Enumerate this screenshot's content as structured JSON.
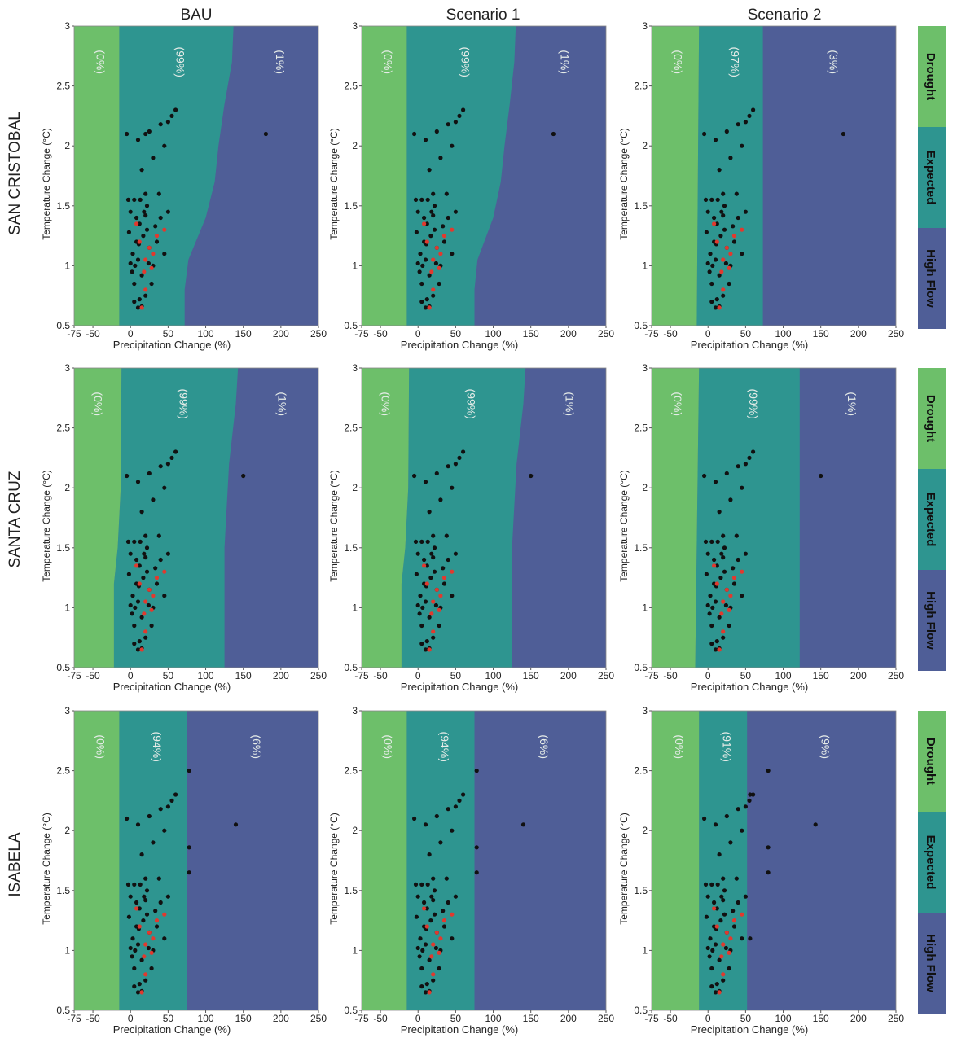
{
  "columns": [
    "BAU",
    "Scenario 1",
    "Scenario 2"
  ],
  "rows": [
    "SAN CRISTOBAL",
    "SANTA CRUZ",
    "ISABELA"
  ],
  "legend": [
    "Drought",
    "Expected",
    "High Flow"
  ],
  "colors": {
    "drought": "#6dbf6a",
    "expected": "#2e9590",
    "highflow": "#4f5e97",
    "point": "#111111",
    "point_red": "#e03a2f",
    "region_label": "#e6ece8"
  },
  "axes": {
    "xlabel": "Precipitation Change (%)",
    "ylabel": "Temperature Change (°C)",
    "xlim": [
      -75,
      250
    ],
    "ylim": [
      0.5,
      3
    ],
    "xticks": [
      -75,
      -50,
      0,
      50,
      100,
      150,
      200,
      250
    ],
    "yticks": [
      0.5,
      1,
      1.5,
      2,
      2.5,
      3
    ]
  },
  "chart_data": [
    {
      "row": "SAN CRISTOBAL",
      "column": "BAU",
      "type": "scatter",
      "region_labels": [
        "(0%)",
        "(99%)",
        "(1%)"
      ],
      "boundary_drought_expected": [
        [
          0.5,
          -15
        ],
        [
          3,
          -15
        ]
      ],
      "boundary_expected_highflow": [
        [
          0.5,
          72
        ],
        [
          0.8,
          72
        ],
        [
          1.05,
          77
        ],
        [
          1.4,
          100
        ],
        [
          1.7,
          112
        ],
        [
          2.0,
          117
        ],
        [
          2.35,
          125
        ],
        [
          2.7,
          135
        ],
        [
          3,
          137
        ]
      ],
      "highlight_points": [
        [
          20,
          2.1
        ],
        [
          180,
          2.1
        ]
      ]
    },
    {
      "row": "SAN CRISTOBAL",
      "column": "Scenario 1",
      "type": "scatter",
      "region_labels": [
        "(0%)",
        "(99%)",
        "(1%)"
      ],
      "boundary_drought_expected": [
        [
          0.5,
          -15
        ],
        [
          3,
          -15
        ]
      ],
      "boundary_expected_highflow": [
        [
          0.5,
          75
        ],
        [
          0.8,
          75
        ],
        [
          1.05,
          79
        ],
        [
          1.4,
          100
        ],
        [
          1.7,
          110
        ],
        [
          2.0,
          115
        ],
        [
          2.35,
          122
        ],
        [
          2.7,
          128
        ],
        [
          3,
          130
        ]
      ],
      "highlight_points": [
        [
          180,
          2.1
        ]
      ]
    },
    {
      "row": "SAN CRISTOBAL",
      "column": "Scenario 2",
      "type": "scatter",
      "region_labels": [
        "(0%)",
        "(97%)",
        "(3%)"
      ],
      "boundary_drought_expected": [
        [
          0.5,
          -15
        ],
        [
          3,
          -12
        ]
      ],
      "boundary_expected_highflow": [
        [
          0.5,
          73
        ],
        [
          3,
          73
        ]
      ],
      "highlight_points": [
        [
          180,
          2.1
        ]
      ]
    },
    {
      "row": "SANTA CRUZ",
      "column": "BAU",
      "type": "scatter",
      "region_labels": [
        "(0%)",
        "(99%)",
        "(1%)"
      ],
      "boundary_drought_expected": [
        [
          0.5,
          -22
        ],
        [
          1.2,
          -22
        ],
        [
          1.5,
          -17
        ],
        [
          2.0,
          -13
        ],
        [
          3,
          -12
        ]
      ],
      "boundary_expected_highflow": [
        [
          0.5,
          125
        ],
        [
          1.5,
          125
        ],
        [
          2.2,
          131
        ],
        [
          2.7,
          140
        ],
        [
          3,
          143
        ]
      ],
      "highlight_points": [
        [
          150,
          2.1
        ]
      ]
    },
    {
      "row": "SANTA CRUZ",
      "column": "Scenario 1",
      "type": "scatter",
      "region_labels": [
        "(0%)",
        "(99%)",
        "(1%)"
      ],
      "boundary_drought_expected": [
        [
          0.5,
          -22
        ],
        [
          1.2,
          -22
        ],
        [
          1.5,
          -17
        ],
        [
          2.0,
          -13
        ],
        [
          3,
          -12
        ]
      ],
      "boundary_expected_highflow": [
        [
          0.5,
          125
        ],
        [
          1.5,
          125
        ],
        [
          2.2,
          131
        ],
        [
          2.7,
          140
        ],
        [
          3,
          143
        ]
      ],
      "highlight_points": [
        [
          150,
          2.1
        ]
      ]
    },
    {
      "row": "SANTA CRUZ",
      "column": "Scenario 2",
      "type": "scatter",
      "region_labels": [
        "(0%)",
        "(99%)",
        "(1%)"
      ],
      "boundary_drought_expected": [
        [
          0.5,
          -17
        ],
        [
          3,
          -12
        ]
      ],
      "boundary_expected_highflow": [
        [
          0.5,
          122
        ],
        [
          3,
          122
        ]
      ],
      "highlight_points": [
        [
          150,
          2.1
        ]
      ]
    },
    {
      "row": "ISABELA",
      "column": "BAU",
      "type": "scatter",
      "region_labels": [
        "(0%)",
        "(94%)",
        "(6%)"
      ],
      "boundary_drought_expected": [
        [
          0.5,
          -15
        ],
        [
          3,
          -15
        ]
      ],
      "boundary_expected_highflow": [
        [
          0.5,
          75
        ],
        [
          3,
          75
        ]
      ],
      "highlight_points": [
        [
          78,
          2.5
        ],
        [
          78,
          1.86
        ],
        [
          78,
          1.65
        ],
        [
          140,
          2.05
        ]
      ]
    },
    {
      "row": "ISABELA",
      "column": "Scenario 1",
      "type": "scatter",
      "region_labels": [
        "(0%)",
        "(94%)",
        "(6%)"
      ],
      "boundary_drought_expected": [
        [
          0.5,
          -15
        ],
        [
          3,
          -15
        ]
      ],
      "boundary_expected_highflow": [
        [
          0.5,
          75
        ],
        [
          3,
          75
        ]
      ],
      "highlight_points": [
        [
          78,
          2.5
        ],
        [
          78,
          1.86
        ],
        [
          78,
          1.65
        ],
        [
          140,
          2.05
        ]
      ]
    },
    {
      "row": "ISABELA",
      "column": "Scenario 2",
      "type": "scatter",
      "region_labels": [
        "(0%)",
        "(91%)",
        "(9%)"
      ],
      "boundary_drought_expected": [
        [
          0.5,
          -12
        ],
        [
          3,
          -12
        ]
      ],
      "boundary_expected_highflow": [
        [
          0.5,
          52
        ],
        [
          3,
          52
        ]
      ],
      "highlight_points": [
        [
          80,
          2.5
        ],
        [
          80,
          1.86
        ],
        [
          80,
          1.65
        ],
        [
          143,
          2.05
        ],
        [
          56,
          2.3
        ],
        [
          56,
          1.1
        ]
      ]
    }
  ],
  "shared_points": {
    "black": [
      [
        5,
        1.55
      ],
      [
        20,
        1.42
      ],
      [
        -2,
        1.28
      ],
      [
        0,
        1.02
      ],
      [
        5,
        0.7
      ],
      [
        10,
        0.65
      ],
      [
        15,
        0.66
      ],
      [
        2,
        0.95
      ],
      [
        8,
        1.2
      ],
      [
        12,
        1.35
      ],
      [
        18,
        1.45
      ],
      [
        22,
        1.3
      ],
      [
        25,
        1.15
      ],
      [
        10,
        1.05
      ],
      [
        15,
        0.92
      ],
      [
        5,
        0.85
      ],
      [
        20,
        0.75
      ],
      [
        30,
        1.0
      ],
      [
        35,
        1.2
      ],
      [
        40,
        1.4
      ],
      [
        45,
        1.1
      ],
      [
        28,
        0.85
      ],
      [
        12,
        0.72
      ],
      [
        8,
        1.4
      ],
      [
        17,
        1.25
      ],
      [
        3,
        1.1
      ],
      [
        13,
        1.55
      ],
      [
        22,
        1.5
      ],
      [
        38,
        1.6
      ],
      [
        50,
        1.45
      ],
      [
        -5,
        2.1
      ],
      [
        10,
        2.05
      ],
      [
        25,
        2.12
      ],
      [
        40,
        2.18
      ],
      [
        50,
        2.2
      ],
      [
        55,
        2.25
      ],
      [
        60,
        2.3
      ],
      [
        45,
        2.0
      ],
      [
        30,
        1.9
      ],
      [
        15,
        1.8
      ],
      [
        -3,
        1.55
      ],
      [
        20,
        1.6
      ],
      [
        0,
        1.45
      ],
      [
        6,
        1.0
      ],
      [
        11,
        1.18
      ],
      [
        24,
        1.02
      ],
      [
        33,
        1.33
      ]
    ],
    "red": [
      [
        8,
        1.35
      ],
      [
        20,
        1.05
      ],
      [
        25,
        1.15
      ],
      [
        15,
        0.65
      ],
      [
        30,
        1.1
      ],
      [
        35,
        1.25
      ],
      [
        20,
        0.8
      ],
      [
        12,
        1.2
      ],
      [
        28,
        0.98
      ],
      [
        45,
        1.3
      ],
      [
        18,
        0.95
      ]
    ]
  }
}
